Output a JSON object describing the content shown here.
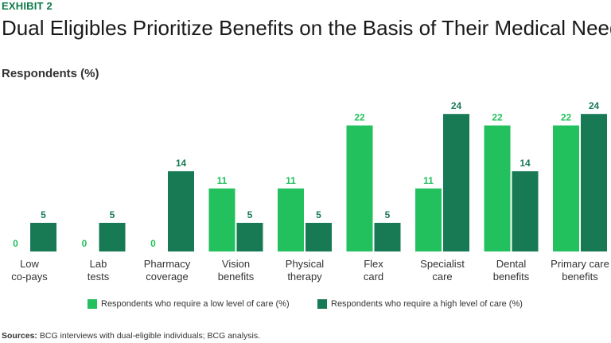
{
  "header": {
    "exhibit": "EXHIBIT 2",
    "title": "Dual Eligibles Prioritize Benefits on the Basis of Their Medical Needs",
    "subtitle": "Respondents (%)"
  },
  "source": {
    "label": "Sources:",
    "text": " BCG interviews with dual-eligible individuals; BCG analysis."
  },
  "colors": {
    "low": "#22c15e",
    "high": "#177a55"
  },
  "chart_data": {
    "type": "bar",
    "title": "Dual Eligibles Prioritize Benefits on the Basis of Their Medical Needs",
    "ylabel": "Respondents (%)",
    "xlabel": "",
    "ylim": [
      0,
      24
    ],
    "grid": false,
    "legend": "bottom",
    "categories": [
      [
        "Low",
        "co-pays"
      ],
      [
        "Lab",
        "tests"
      ],
      [
        "Pharmacy",
        "coverage"
      ],
      [
        "Vision",
        "benefits"
      ],
      [
        "Physical",
        "therapy"
      ],
      [
        "Flex",
        "card"
      ],
      [
        "Specialist",
        "care"
      ],
      [
        "Dental",
        "benefits"
      ],
      [
        "Primary care",
        "benefits"
      ]
    ],
    "series": [
      {
        "name": "Respondents who require a low level of care (%)",
        "values": [
          0,
          0,
          0,
          11,
          11,
          22,
          11,
          22,
          22
        ]
      },
      {
        "name": "Respondents who require a high level of care (%)",
        "values": [
          5,
          5,
          14,
          5,
          5,
          5,
          24,
          14,
          24
        ]
      }
    ]
  }
}
